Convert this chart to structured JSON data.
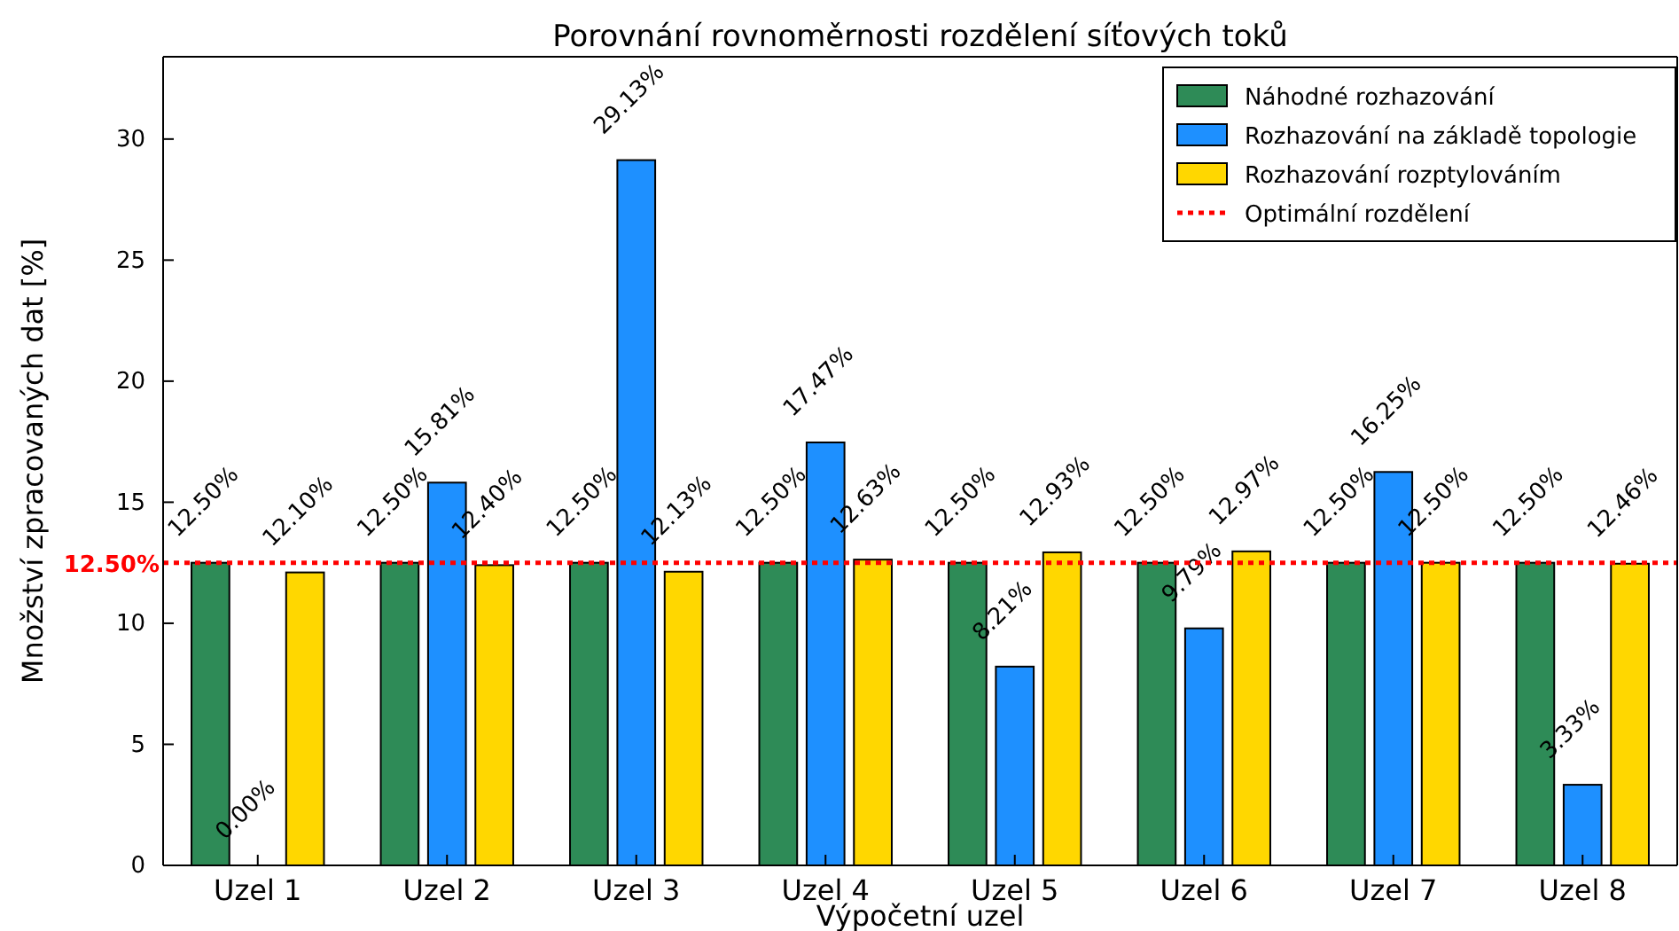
{
  "chart_data": {
    "type": "bar",
    "title": "Porovnání rovnoměrnosti rozdělení síťových toků",
    "xlabel": "Výpočetní uzel",
    "ylabel": "Množství zpracovaných dat [%]",
    "categories": [
      "Uzel 1",
      "Uzel 2",
      "Uzel 3",
      "Uzel 4",
      "Uzel 5",
      "Uzel 6",
      "Uzel 7",
      "Uzel 8"
    ],
    "series": [
      {
        "name": "Náhodné rozhazování",
        "color": "#2e8b57",
        "values": [
          12.5,
          12.5,
          12.5,
          12.5,
          12.5,
          12.5,
          12.5,
          12.5
        ],
        "value_labels": [
          "12.50%",
          "12.50%",
          "12.50%",
          "12.50%",
          "12.50%",
          "12.50%",
          "12.50%",
          "12.50%"
        ]
      },
      {
        "name": "Rozhazování na základě topologie",
        "color": "#1e90ff",
        "values": [
          0,
          15.81,
          29.13,
          17.47,
          8.21,
          9.79,
          16.25,
          3.33
        ],
        "value_labels": [
          "0.00%",
          "15.81%",
          "29.13%",
          "17.47%",
          "8.21%",
          "9.79%",
          "16.25%",
          "3.33%"
        ]
      },
      {
        "name": "Rozhazování rozptylováním",
        "color": "#ffd700",
        "values": [
          12.1,
          12.4,
          12.13,
          12.63,
          12.93,
          12.97,
          12.5,
          12.46
        ],
        "value_labels": [
          "12.10%",
          "12.40%",
          "12.13%",
          "12.63%",
          "12.93%",
          "12.97%",
          "12.50%",
          "12.46%"
        ]
      }
    ],
    "ref_lines": [
      {
        "axis": "y",
        "value": 12.5,
        "label": "Optimální rozdělení",
        "color": "#ff0000",
        "line_style": "dotted"
      }
    ],
    "annotations": [
      "12.50%"
    ],
    "ylim": [
      0,
      33.4
    ],
    "yticks": [
      0,
      5,
      10,
      15,
      20,
      25,
      30
    ],
    "grid": false,
    "legend": "top right"
  }
}
